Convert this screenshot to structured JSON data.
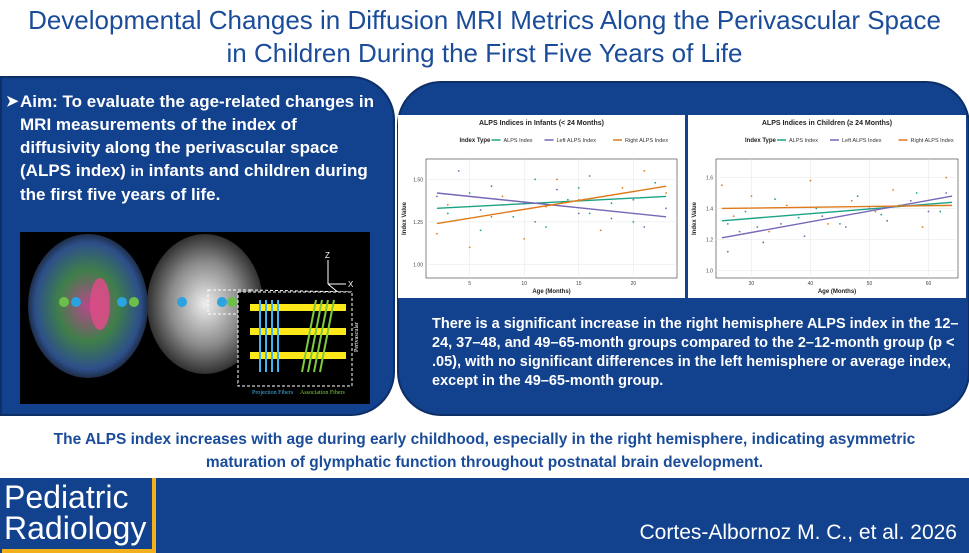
{
  "title": {
    "line1": "Developmental Changes in Diffusion MRI Metrics Along the Perivascular Space",
    "line2": "in Children During the First Five Years of Life"
  },
  "aim": {
    "label": "Aim:",
    "text1": "To evaluate the age-related changes in MRI measurements of the index of diffusivity along the perivascular space (ALPS index)",
    "text2": "in",
    "text3": "infants and children during the first five years of life."
  },
  "figure": {
    "axis_labels": [
      "Z",
      "X",
      "Y"
    ],
    "box_label": "Perivascular",
    "fiber_labels": [
      "Projection Fibers",
      "Association Fibers"
    ]
  },
  "chart_data": [
    {
      "type": "scatter",
      "title": "ALPS Indices in Infants (< 24 Months)",
      "legend_title": "Index Type",
      "legend_position": "top",
      "xlabel": "Age (Months)",
      "ylabel": "Index Value",
      "xlim": [
        1,
        24
      ],
      "ylim": [
        0.92,
        1.62
      ],
      "x_ticks": [
        5,
        10,
        15,
        20
      ],
      "y_ticks": [
        1.0,
        1.25,
        1.5
      ],
      "y_tick_labels": [
        "1.00",
        "1.25",
        "1.50"
      ],
      "series": [
        {
          "name": "ALPS Index",
          "color": "#1aa384",
          "trend": [
            [
              2,
              1.33
            ],
            [
              23,
              1.4
            ]
          ],
          "points": [
            [
              3,
              1.3
            ],
            [
              5,
              1.42
            ],
            [
              6,
              1.2
            ],
            [
              8,
              1.35
            ],
            [
              9,
              1.28
            ],
            [
              11,
              1.5
            ],
            [
              12,
              1.22
            ],
            [
              14,
              1.38
            ],
            [
              15,
              1.45
            ],
            [
              16,
              1.3
            ],
            [
              18,
              1.36
            ],
            [
              20,
              1.25
            ],
            [
              22,
              1.48
            ]
          ]
        },
        {
          "name": "Left ALPS Index",
          "color": "#7667b8",
          "trend": [
            [
              2,
              1.42
            ],
            [
              23,
              1.28
            ]
          ],
          "points": [
            [
              2,
              1.4
            ],
            [
              4,
              1.55
            ],
            [
              6,
              1.32
            ],
            [
              7,
              1.46
            ],
            [
              10,
              1.36
            ],
            [
              11,
              1.25
            ],
            [
              13,
              1.44
            ],
            [
              15,
              1.3
            ],
            [
              16,
              1.52
            ],
            [
              18,
              1.27
            ],
            [
              20,
              1.38
            ],
            [
              21,
              1.22
            ],
            [
              23,
              1.33
            ]
          ]
        },
        {
          "name": "Right ALPS Index",
          "color": "#df7a1c",
          "trend": [
            [
              2,
              1.24
            ],
            [
              23,
              1.46
            ]
          ],
          "points": [
            [
              2,
              1.18
            ],
            [
              3,
              1.35
            ],
            [
              5,
              1.1
            ],
            [
              7,
              1.28
            ],
            [
              8,
              1.4
            ],
            [
              10,
              1.15
            ],
            [
              12,
              1.34
            ],
            [
              13,
              1.5
            ],
            [
              15,
              1.38
            ],
            [
              17,
              1.2
            ],
            [
              19,
              1.45
            ],
            [
              21,
              1.55
            ],
            [
              23,
              1.42
            ]
          ]
        }
      ]
    },
    {
      "type": "scatter",
      "title": "ALPS Indices in Children (≥ 24 Months)",
      "legend_title": "Index Type",
      "legend_position": "top",
      "xlabel": "Age (Months)",
      "ylabel": "Index Value",
      "xlim": [
        24,
        65
      ],
      "ylim": [
        0.95,
        1.72
      ],
      "x_ticks": [
        30,
        40,
        50,
        60
      ],
      "y_ticks": [
        1.0,
        1.2,
        1.4,
        1.6
      ],
      "y_tick_labels": [
        "1.0",
        "1.2",
        "1.4",
        "1.6"
      ],
      "series": [
        {
          "name": "ALPS Index",
          "color": "#1aa384",
          "trend": [
            [
              25,
              1.32
            ],
            [
              64,
              1.44
            ]
          ],
          "points": [
            [
              26,
              1.3
            ],
            [
              29,
              1.38
            ],
            [
              31,
              1.28
            ],
            [
              34,
              1.46
            ],
            [
              38,
              1.34
            ],
            [
              41,
              1.4
            ],
            [
              45,
              1.3
            ],
            [
              48,
              1.48
            ],
            [
              52,
              1.36
            ],
            [
              55,
              1.42
            ],
            [
              58,
              1.5
            ],
            [
              62,
              1.38
            ]
          ]
        },
        {
          "name": "Left ALPS Index",
          "color": "#7667b8",
          "trend": [
            [
              25,
              1.21
            ],
            [
              64,
              1.48
            ]
          ],
          "points": [
            [
              26,
              1.12
            ],
            [
              28,
              1.25
            ],
            [
              32,
              1.18
            ],
            [
              35,
              1.3
            ],
            [
              39,
              1.22
            ],
            [
              42,
              1.35
            ],
            [
              46,
              1.28
            ],
            [
              50,
              1.4
            ],
            [
              53,
              1.32
            ],
            [
              57,
              1.45
            ],
            [
              60,
              1.38
            ],
            [
              63,
              1.5
            ]
          ]
        },
        {
          "name": "Right ALPS Index",
          "color": "#df7a1c",
          "trend": [
            [
              25,
              1.4
            ],
            [
              64,
              1.42
            ]
          ],
          "points": [
            [
              25,
              1.55
            ],
            [
              27,
              1.35
            ],
            [
              30,
              1.48
            ],
            [
              33,
              1.25
            ],
            [
              36,
              1.42
            ],
            [
              40,
              1.58
            ],
            [
              43,
              1.3
            ],
            [
              47,
              1.45
            ],
            [
              51,
              1.38
            ],
            [
              54,
              1.52
            ],
            [
              59,
              1.28
            ],
            [
              63,
              1.6
            ]
          ]
        }
      ]
    }
  ],
  "finding": "There is a significant increase in the right hemisphere ALPS index in the 12–24, 37–48, and 49–65-month groups compared to the 2–12-month group (p < .05), with no significant differences in the left hemisphere or average index, except in the 49–65-month group.",
  "conclusion": {
    "line1": "The ALPS index increases with age during early childhood, especially in the right hemisphere, indicating asymmetric",
    "line2": "maturation of glymphatic function throughout postnatal brain development."
  },
  "journal": {
    "line1": "Pediatric",
    "line2": "Radiology"
  },
  "citation": "Cortes-Albornoz M. C., et al. 2026",
  "colors": {
    "primary": "#12418e",
    "accent": "#f2b01d",
    "title": "#1a4c9a"
  }
}
